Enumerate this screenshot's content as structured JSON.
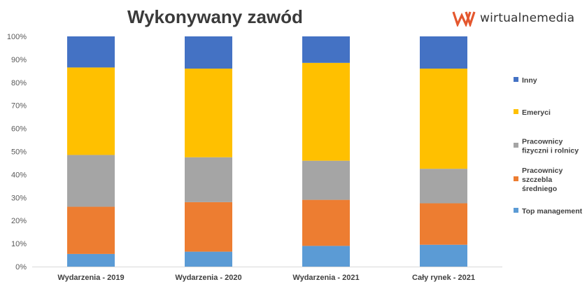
{
  "brand": {
    "name": "wirtualnemedia",
    "logo_icon": "wm-logo-icon",
    "logo_color": "#e4572e"
  },
  "chart_data": {
    "type": "bar",
    "stacked": true,
    "percent": true,
    "title": "Wykonywany zawód",
    "categories": [
      "Wydarzenia - 2019",
      "Wydarzenia - 2020",
      "Wydarzenia - 2021",
      "Cały rynek - 2021"
    ],
    "series": [
      {
        "name": "Top management",
        "color": "#5b9bd5",
        "values": [
          5.5,
          6.5,
          9,
          9.5
        ]
      },
      {
        "name": "Pracownicy szczebla średniego",
        "color": "#ed7d31",
        "values": [
          20.5,
          21.5,
          20,
          18
        ]
      },
      {
        "name": "Pracownicy fizyczni i rolnicy",
        "color": "#a5a5a5",
        "values": [
          22.5,
          19.5,
          17,
          15
        ]
      },
      {
        "name": "Emeryci",
        "color": "#ffc000",
        "values": [
          38,
          38.5,
          42.5,
          43.5
        ]
      },
      {
        "name": "Inny",
        "color": "#4472c4",
        "values": [
          13.5,
          14,
          11.5,
          14
        ]
      }
    ],
    "ylim": [
      0,
      100
    ],
    "yticks": [
      "0%",
      "10%",
      "20%",
      "30%",
      "40%",
      "50%",
      "60%",
      "70%",
      "80%",
      "90%",
      "100%"
    ],
    "grid": false,
    "legend_position": "right",
    "legend": [
      {
        "lines": [
          "Inny"
        ],
        "series": "Inny"
      },
      {
        "lines": [
          "Emeryci"
        ],
        "series": "Emeryci"
      },
      {
        "lines": [
          "Pracownicy",
          "fizyczni i rolnicy"
        ],
        "series": "Pracownicy fizyczni i rolnicy"
      },
      {
        "lines": [
          "Pracownicy",
          "szczebla",
          "średniego"
        ],
        "series": "Pracownicy szczebla średniego"
      },
      {
        "lines": [
          "Top management"
        ],
        "series": "Top management"
      }
    ]
  }
}
